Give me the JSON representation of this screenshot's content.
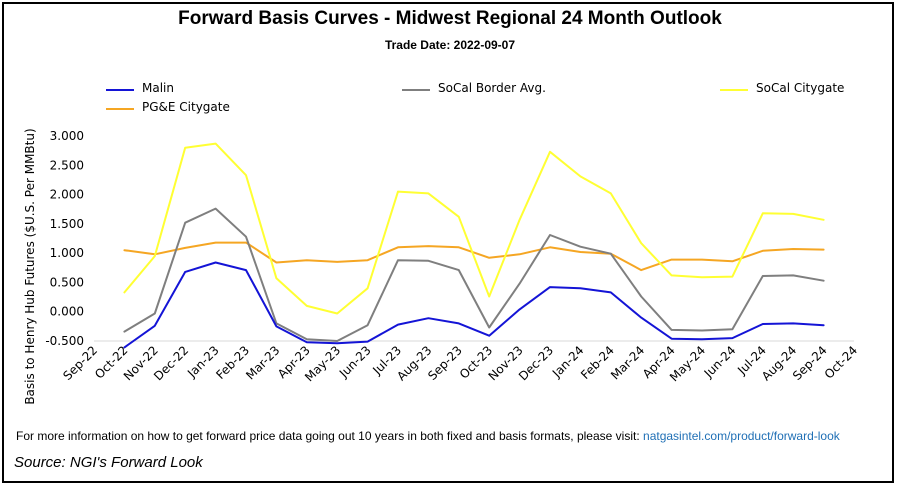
{
  "header": {
    "title": "Forward Basis Curves - Midwest Regional 24 Month Outlook",
    "subtitle": "Trade Date: 2022-09-07"
  },
  "footer": {
    "info_text": "For more information on how to get forward price data going out 10 years in both fixed and basis formats, please visit:",
    "info_link": "natgasintel.com/product/forward-look",
    "source": "Source: NGI's Forward Look"
  },
  "chart_data": {
    "type": "line",
    "title": "Forward Basis Curves - Midwest Regional 24 Month Outlook",
    "subtitle": "Trade Date: 2022-09-07",
    "xlabel": "",
    "ylabel": "Basis to Henry Hub Futures ($U.S. Per MMBtu)",
    "ylim": [
      -0.5,
      3.0
    ],
    "y_ticks": [
      "3.000",
      "2.500",
      "2.000",
      "1.500",
      "1.000",
      "0.500",
      "0.000",
      "-0.500"
    ],
    "categories": [
      "Sep-22",
      "Oct-22",
      "Nov-22",
      "Dec-22",
      "Jan-23",
      "Feb-23",
      "Mar-23",
      "Apr-23",
      "May-23",
      "Jun-23",
      "Jul-23",
      "Aug-23",
      "Sep-23",
      "Oct-23",
      "Nov-23",
      "Dec-23",
      "Jan-24",
      "Feb-24",
      "Mar-24",
      "Apr-24",
      "May-24",
      "Jun-24",
      "Jul-24",
      "Aug-24",
      "Sep-24",
      "Oct-24"
    ],
    "grid": false,
    "legend_position": "top",
    "series": [
      {
        "name": "Malin",
        "color": "#1414d6",
        "values": [
          null,
          -0.61,
          -0.24,
          0.68,
          0.84,
          0.71,
          -0.25,
          -0.52,
          -0.54,
          -0.51,
          -0.22,
          -0.11,
          -0.2,
          -0.41,
          0.04,
          0.42,
          0.4,
          0.33,
          -0.1,
          -0.46,
          -0.47,
          -0.45,
          -0.21,
          -0.2,
          -0.23,
          null
        ]
      },
      {
        "name": "SoCal Border Avg.",
        "color": "#7f7f7f",
        "values": [
          null,
          -0.34,
          -0.03,
          1.52,
          1.76,
          1.28,
          -0.2,
          -0.47,
          -0.5,
          -0.23,
          0.88,
          0.87,
          0.71,
          -0.27,
          0.48,
          1.31,
          1.11,
          0.99,
          0.26,
          -0.31,
          -0.32,
          -0.3,
          0.61,
          0.62,
          0.53,
          null
        ]
      },
      {
        "name": "SoCal Citygate",
        "color": "#ffff33",
        "values": [
          null,
          0.33,
          0.95,
          2.8,
          2.87,
          2.33,
          0.57,
          0.1,
          -0.03,
          0.4,
          2.05,
          2.02,
          1.62,
          0.26,
          1.57,
          2.73,
          2.31,
          2.02,
          1.17,
          0.62,
          0.59,
          0.6,
          1.68,
          1.67,
          1.57,
          null
        ]
      },
      {
        "name": "PG&E Citygate",
        "color": "#f5a623",
        "values": [
          null,
          1.05,
          0.98,
          1.09,
          1.18,
          1.18,
          0.84,
          0.88,
          0.85,
          0.88,
          1.1,
          1.12,
          1.1,
          0.92,
          0.98,
          1.1,
          1.02,
          0.99,
          0.71,
          0.89,
          0.89,
          0.86,
          1.04,
          1.07,
          1.06,
          null
        ]
      }
    ]
  }
}
